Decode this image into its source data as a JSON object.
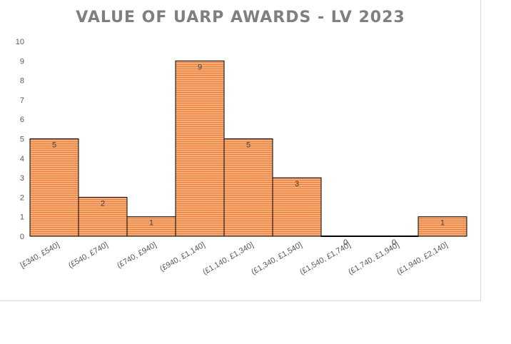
{
  "chart_data": {
    "type": "bar",
    "title": "VALUE OF UARP AWARDS - LV 2023",
    "categories": [
      "[£340, £540]",
      "(£540, £740]",
      "(£740, £940]",
      "(£940, £1,140]",
      "(£1,140, £1,340]",
      "(£1,340, £1,540]",
      "(£1,540, £1,740]",
      "(£1,740, £1,940]",
      "(£1,940, £2,140]"
    ],
    "values": [
      5,
      2,
      1,
      9,
      5,
      3,
      0,
      0,
      1
    ],
    "ylim": [
      0,
      10
    ],
    "yticks": [
      0,
      1,
      2,
      3,
      4,
      5,
      6,
      7,
      8,
      9,
      10
    ],
    "grid": false,
    "legend": "none",
    "colors": {
      "bar_fill": "#f4b183",
      "bar_stripe": "#ed7d31",
      "bar_edge": "#000000",
      "title": "#7f7f7f",
      "axis": "#595959"
    }
  }
}
